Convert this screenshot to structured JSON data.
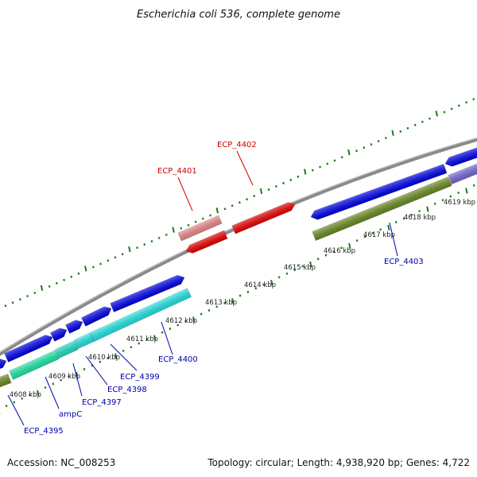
{
  "title": "Escherichia coli 536, complete genome",
  "footer": {
    "accession": "Accession: NC_008253",
    "topology": "Topology: circular; Length: 4,938,920 bp; Genes: 4,722"
  },
  "colors": {
    "backbone": "#8a8a8a",
    "tick": "#1f7a1f",
    "forward_gene": "#0000ee",
    "reverse_gene": "#ee0000",
    "light_red": "#f08a8a",
    "cyan": "#22e8e8",
    "teal": "#22e8aa",
    "olive": "#6b8e23",
    "slate": "#7a6ad8",
    "label_blue": "#0000aa",
    "label_red": "#cc0000"
  },
  "kbp_labels": [
    "4608 kbp",
    "4609 kbp",
    "4610 kbp",
    "4611 kbp",
    "4612 kbp",
    "4613 kbp",
    "4614 kbp",
    "4615 kbp",
    "4616 kbp",
    "4617 kbp",
    "4618 kbp",
    "4619 kbp"
  ],
  "gene_labels": [
    {
      "key": "ecp4395",
      "text": "ECP_4395",
      "color": "label_blue"
    },
    {
      "key": "ampc",
      "text": "ampC",
      "color": "label_blue"
    },
    {
      "key": "ecp4397",
      "text": "ECP_4397",
      "color": "label_blue"
    },
    {
      "key": "ecp4398",
      "text": "ECP_4398",
      "color": "label_blue"
    },
    {
      "key": "ecp4399",
      "text": "ECP_4399",
      "color": "label_blue"
    },
    {
      "key": "ecp4400",
      "text": "ECP_4400",
      "color": "label_blue"
    },
    {
      "key": "ecp4401",
      "text": "ECP_4401",
      "color": "label_red"
    },
    {
      "key": "ecp4402",
      "text": "ECP_4402",
      "color": "label_red"
    },
    {
      "key": "ecp4403",
      "text": "ECP_4403",
      "color": "label_blue"
    }
  ]
}
